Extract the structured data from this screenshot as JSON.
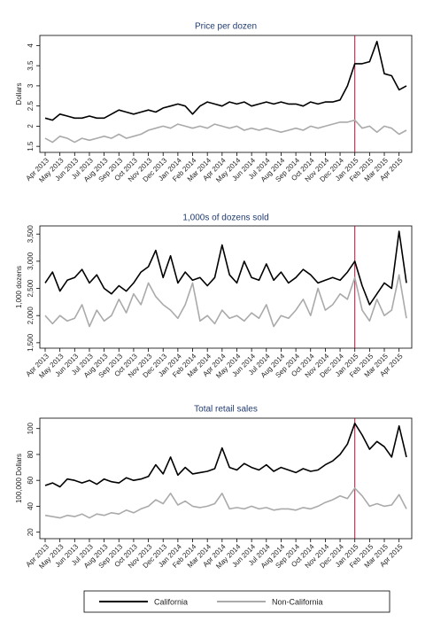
{
  "chart_data": [
    {
      "type": "line",
      "title": "Price per dozen",
      "y_label": "Dollars",
      "categories": [
        "Apr 2013",
        null,
        "May 2013",
        null,
        "Jun 2013",
        null,
        "Jul 2013",
        null,
        "Aug 2013",
        null,
        "Sep 2013",
        null,
        "Oct 2013",
        null,
        "Nov 2013",
        null,
        "Dec 2013",
        null,
        "Jan 2014",
        null,
        "Feb 2014",
        null,
        "Mar 2014",
        null,
        "Apr 2014",
        null,
        "May 2014",
        null,
        "Jun 2014",
        null,
        "Jul 2014",
        null,
        "Aug 2014",
        null,
        "Sep 2014",
        null,
        "Oct 2014",
        null,
        "Nov 2014",
        null,
        "Dec 2014",
        null,
        "Jan 2015",
        null,
        "Feb 2015",
        null,
        "Mar 2015",
        null,
        "Apr 2015",
        null
      ],
      "series": [
        {
          "name": "California",
          "color": "#000000",
          "values": [
            2.2,
            2.15,
            2.3,
            2.25,
            2.2,
            2.2,
            2.25,
            2.2,
            2.2,
            2.3,
            2.4,
            2.35,
            2.3,
            2.35,
            2.4,
            2.35,
            2.45,
            2.5,
            2.55,
            2.5,
            2.3,
            2.5,
            2.6,
            2.55,
            2.5,
            2.6,
            2.55,
            2.6,
            2.5,
            2.55,
            2.6,
            2.55,
            2.6,
            2.55,
            2.55,
            2.5,
            2.6,
            2.55,
            2.6,
            2.6,
            2.65,
            3.0,
            3.55,
            3.55,
            3.6,
            4.1,
            3.3,
            3.25,
            2.9,
            3.0
          ]
        },
        {
          "name": "Non-California",
          "color": "#aaaaaa",
          "values": [
            1.7,
            1.6,
            1.75,
            1.7,
            1.6,
            1.7,
            1.65,
            1.7,
            1.75,
            1.7,
            1.8,
            1.7,
            1.75,
            1.8,
            1.9,
            1.95,
            2.0,
            1.95,
            2.05,
            2.0,
            1.95,
            2.0,
            1.95,
            2.05,
            2.0,
            1.95,
            2.0,
            1.9,
            1.95,
            1.9,
            1.95,
            1.9,
            1.85,
            1.9,
            1.95,
            1.9,
            2.0,
            1.95,
            2.0,
            2.05,
            2.1,
            2.1,
            2.15,
            1.95,
            2.0,
            1.85,
            2.0,
            1.95,
            1.8,
            1.9
          ]
        }
      ],
      "ylim": [
        1.35,
        4.25
      ],
      "yticks": [
        {
          "value": 1.5,
          "label": "1.5"
        },
        2,
        {
          "value": 2.5,
          "label": "2.5"
        },
        3,
        {
          "value": 3.5,
          "label": "3.5"
        },
        4
      ],
      "reference_line": {
        "x": "Jan 2015",
        "color": "#b0103a"
      }
    },
    {
      "type": "line",
      "title": "1,000s of dozens sold",
      "y_label": "1,000 dozens",
      "categories": [
        "Apr 2013",
        null,
        "May 2013",
        null,
        "Jun 2013",
        null,
        "Jul 2013",
        null,
        "Aug 2013",
        null,
        "Sep 2013",
        null,
        "Oct 2013",
        null,
        "Nov 2013",
        null,
        "Dec 2013",
        null,
        "Jan 2014",
        null,
        "Feb 2014",
        null,
        "Mar 2014",
        null,
        "Apr 2014",
        null,
        "May 2014",
        null,
        "Jun 2014",
        null,
        "Jul 2014",
        null,
        "Aug 2014",
        null,
        "Sep 2014",
        null,
        "Oct 2014",
        null,
        "Nov 2014",
        null,
        "Dec 2014",
        null,
        "Jan 2015",
        null,
        "Feb 2015",
        null,
        "Mar 2015",
        null,
        "Apr 2015",
        null
      ],
      "series": [
        {
          "name": "California",
          "color": "#000000",
          "values": [
            2600,
            2800,
            2450,
            2650,
            2700,
            2850,
            2600,
            2750,
            2500,
            2400,
            2550,
            2450,
            2600,
            2800,
            2900,
            3200,
            2700,
            3100,
            2600,
            2800,
            2650,
            2700,
            2550,
            2700,
            3300,
            2750,
            2600,
            3000,
            2700,
            2650,
            2950,
            2650,
            2800,
            2600,
            2700,
            2850,
            2750,
            2600,
            2650,
            2700,
            2650,
            2800,
            3000,
            2550,
            2200,
            2400,
            2600,
            2500,
            3550,
            2600
          ]
        },
        {
          "name": "Non-California",
          "color": "#aaaaaa",
          "values": [
            2000,
            1850,
            2000,
            1900,
            1950,
            2200,
            1800,
            2100,
            1900,
            2000,
            2300,
            2050,
            2400,
            2200,
            2600,
            2350,
            2200,
            2100,
            1950,
            2200,
            2600,
            1900,
            2000,
            1850,
            2100,
            1950,
            2000,
            1900,
            2050,
            1950,
            2200,
            1800,
            2000,
            1950,
            2100,
            2300,
            2000,
            2500,
            2100,
            2200,
            2400,
            2300,
            2700,
            2100,
            1900,
            2300,
            2000,
            2100,
            2750,
            1950
          ]
        }
      ],
      "ylim": [
        1400,
        3650
      ],
      "yticks": [
        {
          "value": 1500,
          "label": "1,500"
        },
        {
          "value": 2000,
          "label": "2,000"
        },
        {
          "value": 2500,
          "label": "2,500"
        },
        {
          "value": 3000,
          "label": "3,000"
        },
        {
          "value": 3500,
          "label": "3,500"
        }
      ],
      "reference_line": {
        "x": "Jan 2015",
        "color": "#b0103a"
      }
    },
    {
      "type": "line",
      "title": "Total retail sales",
      "y_label": "100,000 Dollars",
      "categories": [
        "Apr 2013",
        null,
        "May 2013",
        null,
        "Jun 2013",
        null,
        "Jul 2013",
        null,
        "Aug 2013",
        null,
        "Sep 2013",
        null,
        "Oct 2013",
        null,
        "Nov 2013",
        null,
        "Dec 2013",
        null,
        "Jan 2014",
        null,
        "Feb 2014",
        null,
        "Mar 2014",
        null,
        "Apr 2014",
        null,
        "May 2014",
        null,
        "Jun 2014",
        null,
        "Jul 2014",
        null,
        "Aug 2014",
        null,
        "Sep 2014",
        null,
        "Oct 2014",
        null,
        "Nov 2014",
        null,
        "Dec 2014",
        null,
        "Jan 2015",
        null,
        "Feb 2015",
        null,
        "Mar 2015",
        null,
        "Apr 2015",
        null
      ],
      "series": [
        {
          "name": "California",
          "color": "#000000",
          "values": [
            56,
            58,
            55,
            61,
            60,
            58,
            60,
            57,
            61,
            59,
            58,
            62,
            60,
            61,
            63,
            72,
            65,
            78,
            64,
            70,
            65,
            66,
            67,
            69,
            85,
            70,
            68,
            73,
            70,
            68,
            72,
            67,
            70,
            68,
            66,
            69,
            67,
            68,
            72,
            75,
            80,
            88,
            104,
            95,
            84,
            90,
            86,
            78,
            102,
            78
          ]
        },
        {
          "name": "Non-California",
          "color": "#aaaaaa",
          "values": [
            33,
            32,
            31,
            33,
            32,
            34,
            31,
            34,
            33,
            35,
            34,
            37,
            35,
            38,
            40,
            45,
            42,
            50,
            41,
            44,
            40,
            39,
            40,
            42,
            50,
            38,
            39,
            38,
            40,
            38,
            39,
            37,
            38,
            38,
            37,
            39,
            38,
            40,
            43,
            45,
            48,
            46,
            54,
            48,
            40,
            42,
            40,
            41,
            49,
            38
          ]
        }
      ],
      "ylim": [
        15,
        108
      ],
      "yticks": [
        20,
        40,
        60,
        80,
        100
      ],
      "reference_line": {
        "x": "Jan 2015",
        "color": "#b0103a"
      }
    }
  ]
}
